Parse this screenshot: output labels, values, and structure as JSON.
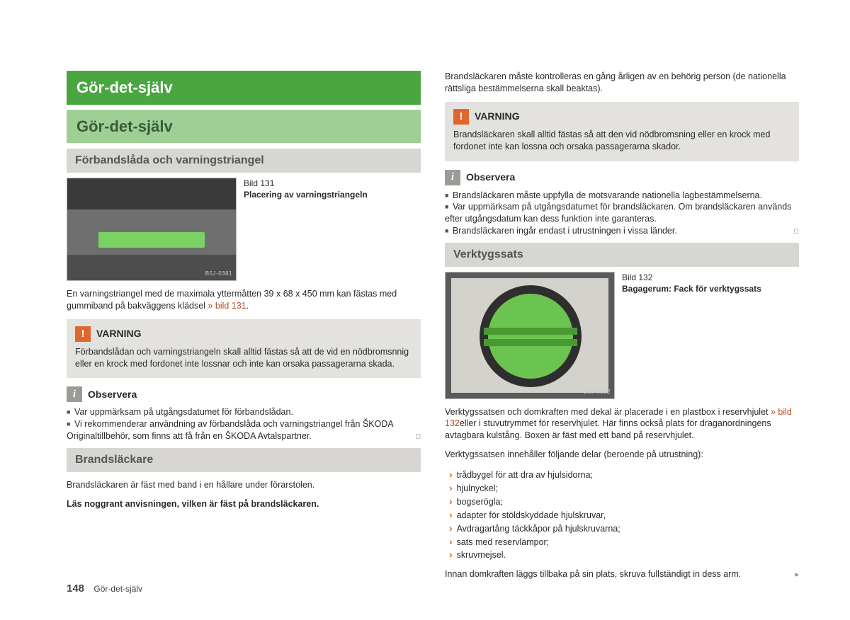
{
  "colors": {
    "chapter_bg": "#4aa640",
    "section_bg": "#a0cf96",
    "subhead_bg": "#d7d6d3",
    "callout_bg": "#e3e2df",
    "warn_badge": "#e0662b",
    "info_badge": "#9d9b97",
    "xref": "#b54b20",
    "text": "#2a2a2a"
  },
  "chapter": "Gör-det-själv",
  "section": "Gör-det-själv",
  "left": {
    "sub1": "Förbandslåda och varningstriangel",
    "fig1": {
      "tag": "B5J-0381",
      "num": "Bild 131",
      "caption": "Placering av varningstriangeln"
    },
    "p1a": "En varningstriangel med de maximala yttermåtten 39 x 68 x 450 mm kan fästas med gummiband på bakväggens klädsel ",
    "p1ref": "» bild 131",
    "p1b": ".",
    "warn1_title": "VARNING",
    "warn1_body": "Förbandslådan och varningstriangeln skall alltid fästas så att de vid en nödbromsnnig eller en krock med fordonet inte lossnar och inte kan orsaka passagerarna skada.",
    "obs_title": "Observera",
    "obs_items": [
      "Var uppmärksam på utgångsdatumet för förbandslådan.",
      "Vi rekommenderar användning av förbandslåda och varningstriangel från ŠKODA Originaltillbehör, som finns att få från en ŠKODA Avtalspartner."
    ],
    "sub2": "Brandsläckare",
    "p2": "Brandsläckaren är fäst med band i en hållare under förarstolen.",
    "p3": "Läs noggrant anvisningen, vilken är fäst på brandsläckaren."
  },
  "right": {
    "p_top": "Brandsläckaren måste kontrolleras en gång årligen av en behörig person (de nationella rättsliga bestämmelserna skall beaktas).",
    "warn_title": "VARNING",
    "warn_body": "Brandsläckaren skall alltid fästas så att den vid nödbromsning eller en krock med fordonet inte kan lossna och orsaka passagerarna skador.",
    "obs_title": "Observera",
    "obs_items": [
      "Brandsläckaren måste uppfylla de motsvarande nationella lagbestämmelserna.",
      "Var uppmärksam på utgångsdatumet för brandsläckaren. Om brandsläckaren används efter utgångsdatum kan dess funktion inte garanteras.",
      "Brandsläckaren ingår endast i utrustningen i vissa länder."
    ],
    "sub": "Verktygssats",
    "fig2": {
      "tag": "B5J-0382",
      "num": "Bild 132",
      "caption": "Bagagerum: Fack för verktygssats"
    },
    "p1a": "Verktygssatsen och domkraften med dekal är placerade i en plastbox i reservhjulet ",
    "p1ref": "» bild 132",
    "p1b": "eller i stuvutrymmet för reservhjulet. Här finns också plats för draganordningens avtagbara kulstång. Boxen är fäst med ett band på reservhjulet.",
    "p2": "Verktygssatsen innehåller följande delar (beroende på utrustning):",
    "tools": [
      "trådbygel för att dra av hjulsidorna;",
      "hjulnyckel;",
      "bogserögla;",
      "adapter för stöldskyddade hjulskruvar,",
      "Avdragartång täckkåpor på hjulskruvarna;",
      "sats med reservlampor;",
      "skruvmejsel."
    ],
    "p3": "Innan domkraften läggs tillbaka på sin plats, skruva fullständigt in dess arm."
  },
  "footer": {
    "page": "148",
    "label": "Gör-det-själv"
  }
}
